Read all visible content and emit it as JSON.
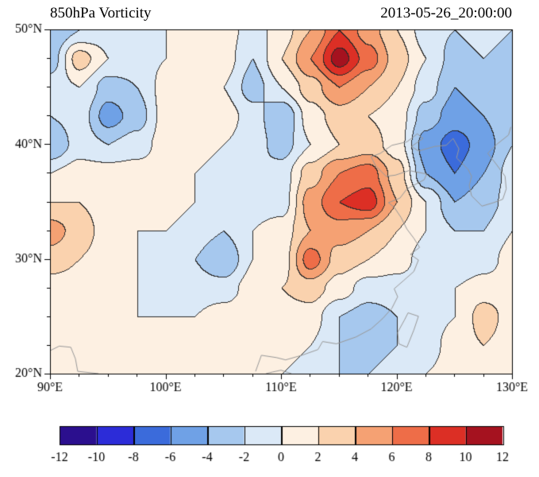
{
  "header": {
    "title": "850hPa Vorticity",
    "timestamp": "2013-05-26_20:00:00"
  },
  "chart_data": {
    "type": "heatmap",
    "title": "850hPa Vorticity",
    "timestamp": "2013-05-26_20:00:00",
    "variable": "850hPa relative vorticity (filled contours)",
    "contour_interval": 2,
    "x": {
      "min": 90,
      "max": 130,
      "major_ticks": [
        90,
        100,
        110,
        120,
        130
      ],
      "tick_labels": [
        "90°E",
        "100°E",
        "110°E",
        "120°E",
        "130°E"
      ],
      "minor_step": 2.5
    },
    "y": {
      "min": 20,
      "max": 50,
      "major_ticks": [
        50,
        40,
        30,
        20
      ],
      "tick_labels": [
        "50°N",
        "40°N",
        "30°N",
        "20°N"
      ],
      "minor_step": 2.5
    },
    "levels": [
      -12,
      -10,
      -8,
      -6,
      -4,
      -2,
      0,
      2,
      4,
      6,
      8,
      10,
      12
    ],
    "colors": [
      "#2b0f8e",
      "#2c2cd8",
      "#3b6bdb",
      "#6fa1e6",
      "#a6c8ee",
      "#dbe9f7",
      "#fdf0e2",
      "#fad2ae",
      "#f5a173",
      "#ee6d48",
      "#dc2f25",
      "#a5121f"
    ],
    "contour_line_color": "#2a2a2a",
    "coastline_color": "#999999",
    "colorbar": {
      "orientation": "horizontal",
      "tick_labels": [
        "-12",
        "-10",
        "-8",
        "-6",
        "-4",
        "-2",
        "0",
        "2",
        "4",
        "6",
        "8",
        "10",
        "12"
      ]
    },
    "grid": {
      "lon_start": 90,
      "lon_step": 2.5,
      "lat_start": 50,
      "lat_step": -2.5,
      "values": [
        [
          -4,
          -2,
          -1,
          -1,
          0,
          1,
          1,
          -1,
          1,
          4,
          8,
          5,
          2,
          -1,
          -2,
          -1,
          -2
        ],
        [
          -3,
          3,
          0,
          -1,
          0,
          1,
          1,
          -2,
          2,
          6,
          11,
          7,
          3,
          0,
          -3,
          -2,
          -3
        ],
        [
          -1,
          0,
          -3,
          -2,
          1,
          1,
          0,
          -3,
          0,
          3,
          6,
          4,
          2,
          -1,
          -4,
          -3,
          -3
        ],
        [
          -2,
          -1,
          -5,
          -3,
          1,
          2,
          1,
          -1,
          -4,
          1,
          3,
          2,
          1,
          -3,
          -5,
          -4,
          -2
        ],
        [
          -4,
          -1,
          -2,
          -1,
          1,
          1,
          0,
          -1,
          -3,
          0,
          2,
          3,
          1,
          -5,
          -7,
          -5,
          -2
        ],
        [
          0,
          1,
          1,
          1,
          1,
          0,
          -1,
          -2,
          -1,
          3,
          6,
          7,
          3,
          -4,
          -6,
          -4,
          -1
        ],
        [
          2,
          2,
          1,
          1,
          1,
          0,
          -1,
          -1,
          -1,
          5,
          8,
          9,
          4,
          0,
          -4,
          -3,
          -1
        ],
        [
          5,
          3,
          1,
          0,
          0,
          -1,
          -2,
          0,
          1,
          4,
          5,
          4,
          2,
          0,
          -2,
          -2,
          0
        ],
        [
          3,
          2,
          1,
          0,
          -1,
          -2,
          -4,
          0,
          1,
          7,
          3,
          2,
          1,
          -1,
          -2,
          -1,
          1
        ],
        [
          1,
          1,
          1,
          0,
          -1,
          -1,
          -1,
          1,
          2,
          3,
          1,
          -1,
          -1,
          -1,
          0,
          1,
          1
        ],
        [
          1,
          1,
          0,
          0,
          0,
          0,
          1,
          1,
          1,
          1,
          -2,
          -3,
          -2,
          -1,
          0,
          3,
          1
        ],
        [
          1,
          1,
          1,
          1,
          1,
          1,
          1,
          1,
          1,
          0,
          -2,
          -3,
          -2,
          -1,
          1,
          2,
          1
        ],
        [
          1,
          1,
          1,
          1,
          1,
          1,
          1,
          1,
          0,
          -1,
          -2,
          -2,
          -1,
          0,
          1,
          1,
          1
        ]
      ]
    },
    "coastlines": [
      [
        [
          107.8,
          20.2
        ],
        [
          108.3,
          21.6
        ],
        [
          109.6,
          21.4
        ],
        [
          110.4,
          21.2
        ],
        [
          111.8,
          21.6
        ],
        [
          113.2,
          22.1
        ],
        [
          113.6,
          22.8
        ],
        [
          114.8,
          22.6
        ],
        [
          116.5,
          23.2
        ],
        [
          117.8,
          23.9
        ],
        [
          118.8,
          24.8
        ],
        [
          119.6,
          25.7
        ],
        [
          120.1,
          26.7
        ],
        [
          119.8,
          27.4
        ],
        [
          120.6,
          28.1
        ],
        [
          121.5,
          28.9
        ],
        [
          121.9,
          29.9
        ],
        [
          121.2,
          30.4
        ],
        [
          122.0,
          31.0
        ],
        [
          121.5,
          31.8
        ],
        [
          120.9,
          32.6
        ],
        [
          120.4,
          33.6
        ],
        [
          119.8,
          34.5
        ],
        [
          119.3,
          34.9
        ],
        [
          120.3,
          35.3
        ],
        [
          120.9,
          36.1
        ],
        [
          122.4,
          36.9
        ],
        [
          122.6,
          37.4
        ],
        [
          121.1,
          37.7
        ],
        [
          119.9,
          37.3
        ],
        [
          119.1,
          37.2
        ],
        [
          118.2,
          38.1
        ],
        [
          117.8,
          38.9
        ],
        [
          118.6,
          39.2
        ],
        [
          119.6,
          39.9
        ],
        [
          120.9,
          40.2
        ],
        [
          121.8,
          40.9
        ],
        [
          122.3,
          40.5
        ],
        [
          121.3,
          39.8
        ],
        [
          121.9,
          39.4
        ],
        [
          123.3,
          39.8
        ],
        [
          124.3,
          39.9
        ],
        [
          124.9,
          40.5
        ],
        [
          125.4,
          39.6
        ],
        [
          125.2,
          38.8
        ],
        [
          126.2,
          37.8
        ],
        [
          126.5,
          37.2
        ],
        [
          126.3,
          36.4
        ],
        [
          126.5,
          35.5
        ],
        [
          127.4,
          34.6
        ],
        [
          128.4,
          34.9
        ],
        [
          129.2,
          35.2
        ],
        [
          129.5,
          36.1
        ],
        [
          129.4,
          37.2
        ],
        [
          128.6,
          38.3
        ],
        [
          127.9,
          39.2
        ],
        [
          128.7,
          40.0
        ],
        [
          129.7,
          40.8
        ],
        [
          129.9,
          41.5
        ]
      ],
      [
        [
          121.0,
          25.3
        ],
        [
          121.9,
          25.0
        ],
        [
          121.5,
          23.8
        ],
        [
          120.9,
          22.3
        ],
        [
          120.2,
          22.6
        ],
        [
          120.1,
          23.6
        ],
        [
          120.7,
          24.7
        ],
        [
          121.0,
          25.3
        ]
      ],
      [
        [
          108.7,
          20.0
        ],
        [
          109.3,
          20.15
        ],
        [
          110.0,
          20.3
        ],
        [
          110.6,
          20.1
        ],
        [
          110.9,
          20.0
        ]
      ],
      [
        [
          90.0,
          22.0
        ],
        [
          90.8,
          22.4
        ],
        [
          91.8,
          22.3
        ],
        [
          92.2,
          21.3
        ],
        [
          92.4,
          20.2
        ],
        [
          93.3,
          20.1
        ],
        [
          94.2,
          20.0
        ]
      ]
    ]
  }
}
